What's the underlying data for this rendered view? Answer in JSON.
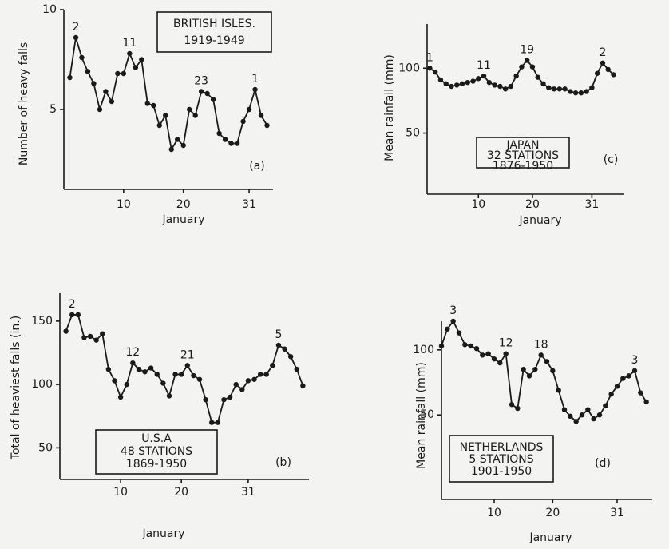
{
  "chart_data": [
    {
      "type": "line",
      "panel_label": "(a)",
      "box_text": [
        "BRITISH ISLES.",
        "1919-1949"
      ],
      "y_label": "Number of heavy falls",
      "x_label": "January",
      "color": "#1a1a1a",
      "xlim": [
        0,
        35
      ],
      "ylim": [
        1,
        10
      ],
      "xticks": [
        10,
        20,
        31
      ],
      "yticks": [
        5,
        10
      ],
      "x": [
        1,
        2,
        3,
        4,
        5,
        6,
        7,
        8,
        9,
        10,
        11,
        12,
        13,
        14,
        15,
        16,
        17,
        18,
        19,
        20,
        21,
        22,
        23,
        24,
        25,
        26,
        27,
        28,
        29,
        30,
        31,
        32,
        33,
        34
      ],
      "values": [
        6.6,
        8.6,
        7.6,
        6.9,
        6.3,
        5.0,
        5.9,
        5.4,
        6.8,
        6.8,
        7.8,
        7.1,
        7.5,
        5.3,
        5.2,
        4.2,
        4.7,
        3.0,
        3.5,
        3.2,
        5.0,
        4.7,
        5.9,
        5.8,
        5.5,
        3.8,
        3.5,
        3.3,
        3.3,
        4.4,
        5.0,
        6.0,
        4.7,
        4.2
      ],
      "annotations": [
        {
          "text": "2",
          "x": 2
        },
        {
          "text": "11",
          "x": 11
        },
        {
          "text": "23",
          "x": 23
        },
        {
          "text": "1",
          "x": 32
        }
      ]
    },
    {
      "type": "line",
      "panel_label": "(c)",
      "box_text": [
        "JAPAN",
        "32 STATIONS",
        "1876-1950"
      ],
      "y_label": "Mean rainfall (mm)",
      "x_label": "January",
      "color": "#1a1a1a",
      "xlim": [
        0.5,
        37
      ],
      "ylim": [
        3,
        134
      ],
      "xticks": [
        10,
        20,
        31
      ],
      "yticks": [
        50,
        100
      ],
      "x": [
        1,
        2,
        3,
        4,
        5,
        6,
        7,
        8,
        9,
        10,
        11,
        12,
        13,
        14,
        15,
        16,
        17,
        18,
        19,
        20,
        21,
        22,
        23,
        24,
        25,
        26,
        27,
        28,
        29,
        30,
        31,
        32,
        33,
        34,
        35
      ],
      "values": [
        100,
        97,
        91,
        88,
        86,
        87,
        88,
        89,
        90,
        92,
        94,
        89,
        87,
        86,
        84,
        86,
        94,
        101,
        106,
        101,
        93,
        88,
        85,
        84,
        84,
        84,
        82,
        81,
        81,
        82,
        85,
        96,
        104,
        99,
        95
      ],
      "annotations": [
        {
          "text": "1",
          "x": 1
        },
        {
          "text": "11",
          "x": 11
        },
        {
          "text": "19",
          "x": 19
        },
        {
          "text": "2",
          "x": 33
        }
      ]
    },
    {
      "type": "line",
      "panel_label": "(b)",
      "box_text": [
        "U.S.A",
        "48 STATIONS",
        "1869-1950"
      ],
      "y_label": "Total of heaviest falls (in.)",
      "x_label": "January",
      "color": "#1a1a1a",
      "xlim": [
        0,
        41
      ],
      "ylim": [
        25,
        172
      ],
      "xticks": [
        10,
        20,
        31
      ],
      "yticks": [
        50,
        100,
        150
      ],
      "x": [
        1,
        2,
        3,
        4,
        5,
        6,
        7,
        8,
        9,
        10,
        11,
        12,
        13,
        14,
        15,
        16,
        17,
        18,
        19,
        20,
        21,
        22,
        23,
        24,
        25,
        26,
        27,
        28,
        29,
        30,
        31,
        32,
        33,
        34,
        35,
        36,
        37,
        38,
        39,
        40
      ],
      "values": [
        142,
        155,
        155,
        137,
        138,
        135,
        140,
        112,
        103,
        90,
        100,
        117,
        112,
        110,
        113,
        108,
        101,
        91,
        108,
        108,
        115,
        107,
        104,
        88,
        70,
        70,
        88,
        90,
        100,
        96,
        103,
        104,
        108,
        108,
        115,
        131,
        128,
        122,
        112,
        99
      ],
      "annotations": [
        {
          "text": "2",
          "x": 2
        },
        {
          "text": "12",
          "x": 12
        },
        {
          "text": "21",
          "x": 21
        },
        {
          "text": "5",
          "x": 36
        }
      ]
    },
    {
      "type": "line",
      "panel_label": "(d)",
      "box_text": [
        "NETHERLANDS",
        "5 STATIONS",
        "1901-1950"
      ],
      "y_label": "Mean rainfall (mm)",
      "x_label": "January",
      "color": "#1a1a1a",
      "xlim": [
        1,
        37
      ],
      "ylim": [
        -15,
        122
      ],
      "xticks": [
        10,
        20,
        31
      ],
      "yticks": [
        50,
        100
      ],
      "x": [
        1,
        2,
        3,
        4,
        5,
        6,
        7,
        8,
        9,
        10,
        11,
        12,
        13,
        14,
        15,
        16,
        17,
        18,
        19,
        20,
        21,
        22,
        23,
        24,
        25,
        26,
        27,
        28,
        29,
        30,
        31,
        32,
        33,
        34,
        35,
        36
      ],
      "values": [
        103,
        116,
        122,
        113,
        104,
        103,
        101,
        96,
        97,
        93,
        90,
        97,
        58,
        55,
        85,
        80,
        85,
        96,
        91,
        84,
        69,
        54,
        49,
        45,
        50,
        54,
        47,
        50,
        57,
        66,
        72,
        78,
        80,
        84,
        67,
        60
      ],
      "annotations": [
        {
          "text": "3",
          "x": 3
        },
        {
          "text": "12",
          "x": 12
        },
        {
          "text": "18",
          "x": 18
        },
        {
          "text": "3",
          "x": 34
        }
      ]
    }
  ]
}
